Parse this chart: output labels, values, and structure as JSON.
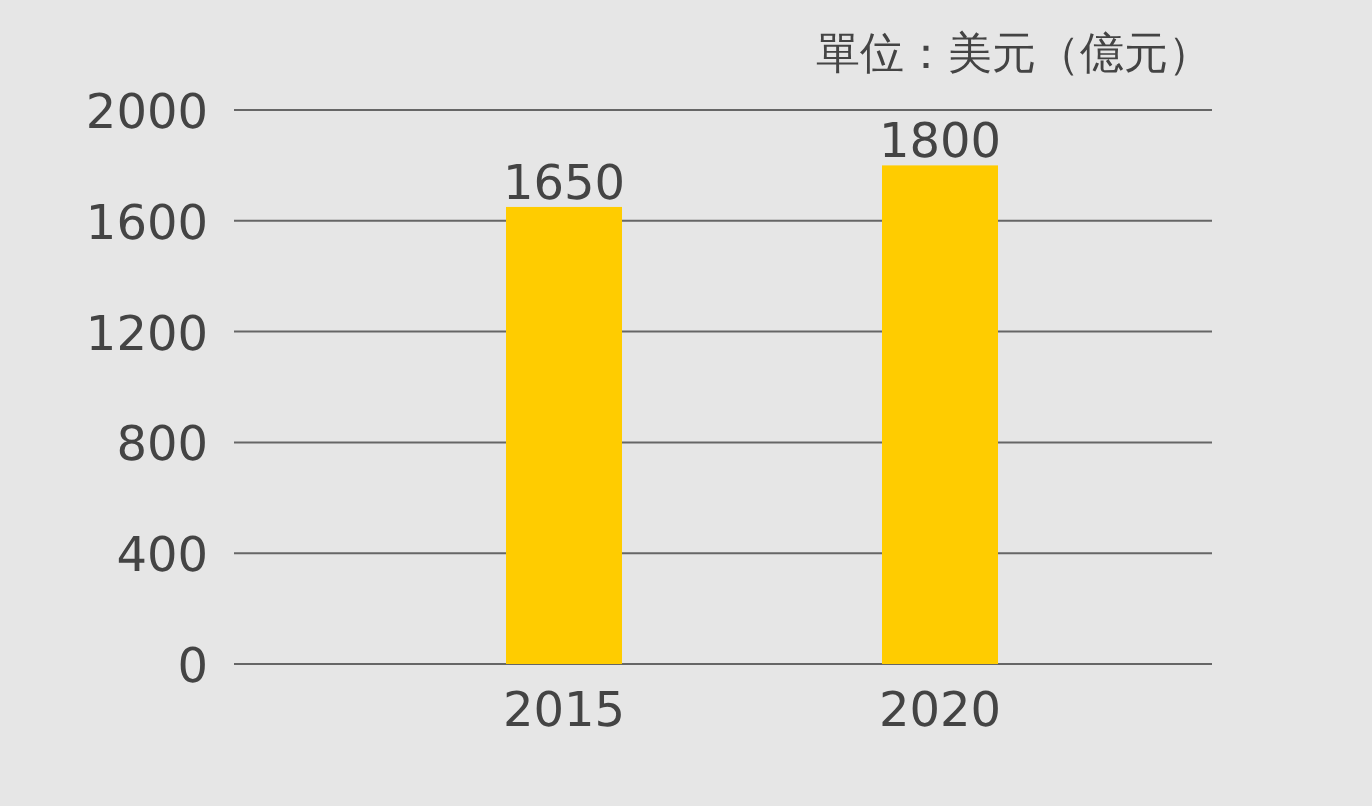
{
  "chart_data": {
    "type": "bar",
    "ylabel": "單位：美元（億元）",
    "categories": [
      "2015",
      "2020"
    ],
    "values": [
      1650,
      1800
    ],
    "color": "#ffcc00",
    "ylim": [
      0,
      2000
    ],
    "yticks": [
      0,
      400,
      800,
      1200,
      1600,
      2000
    ],
    "grid": "y",
    "data_labels": true
  }
}
